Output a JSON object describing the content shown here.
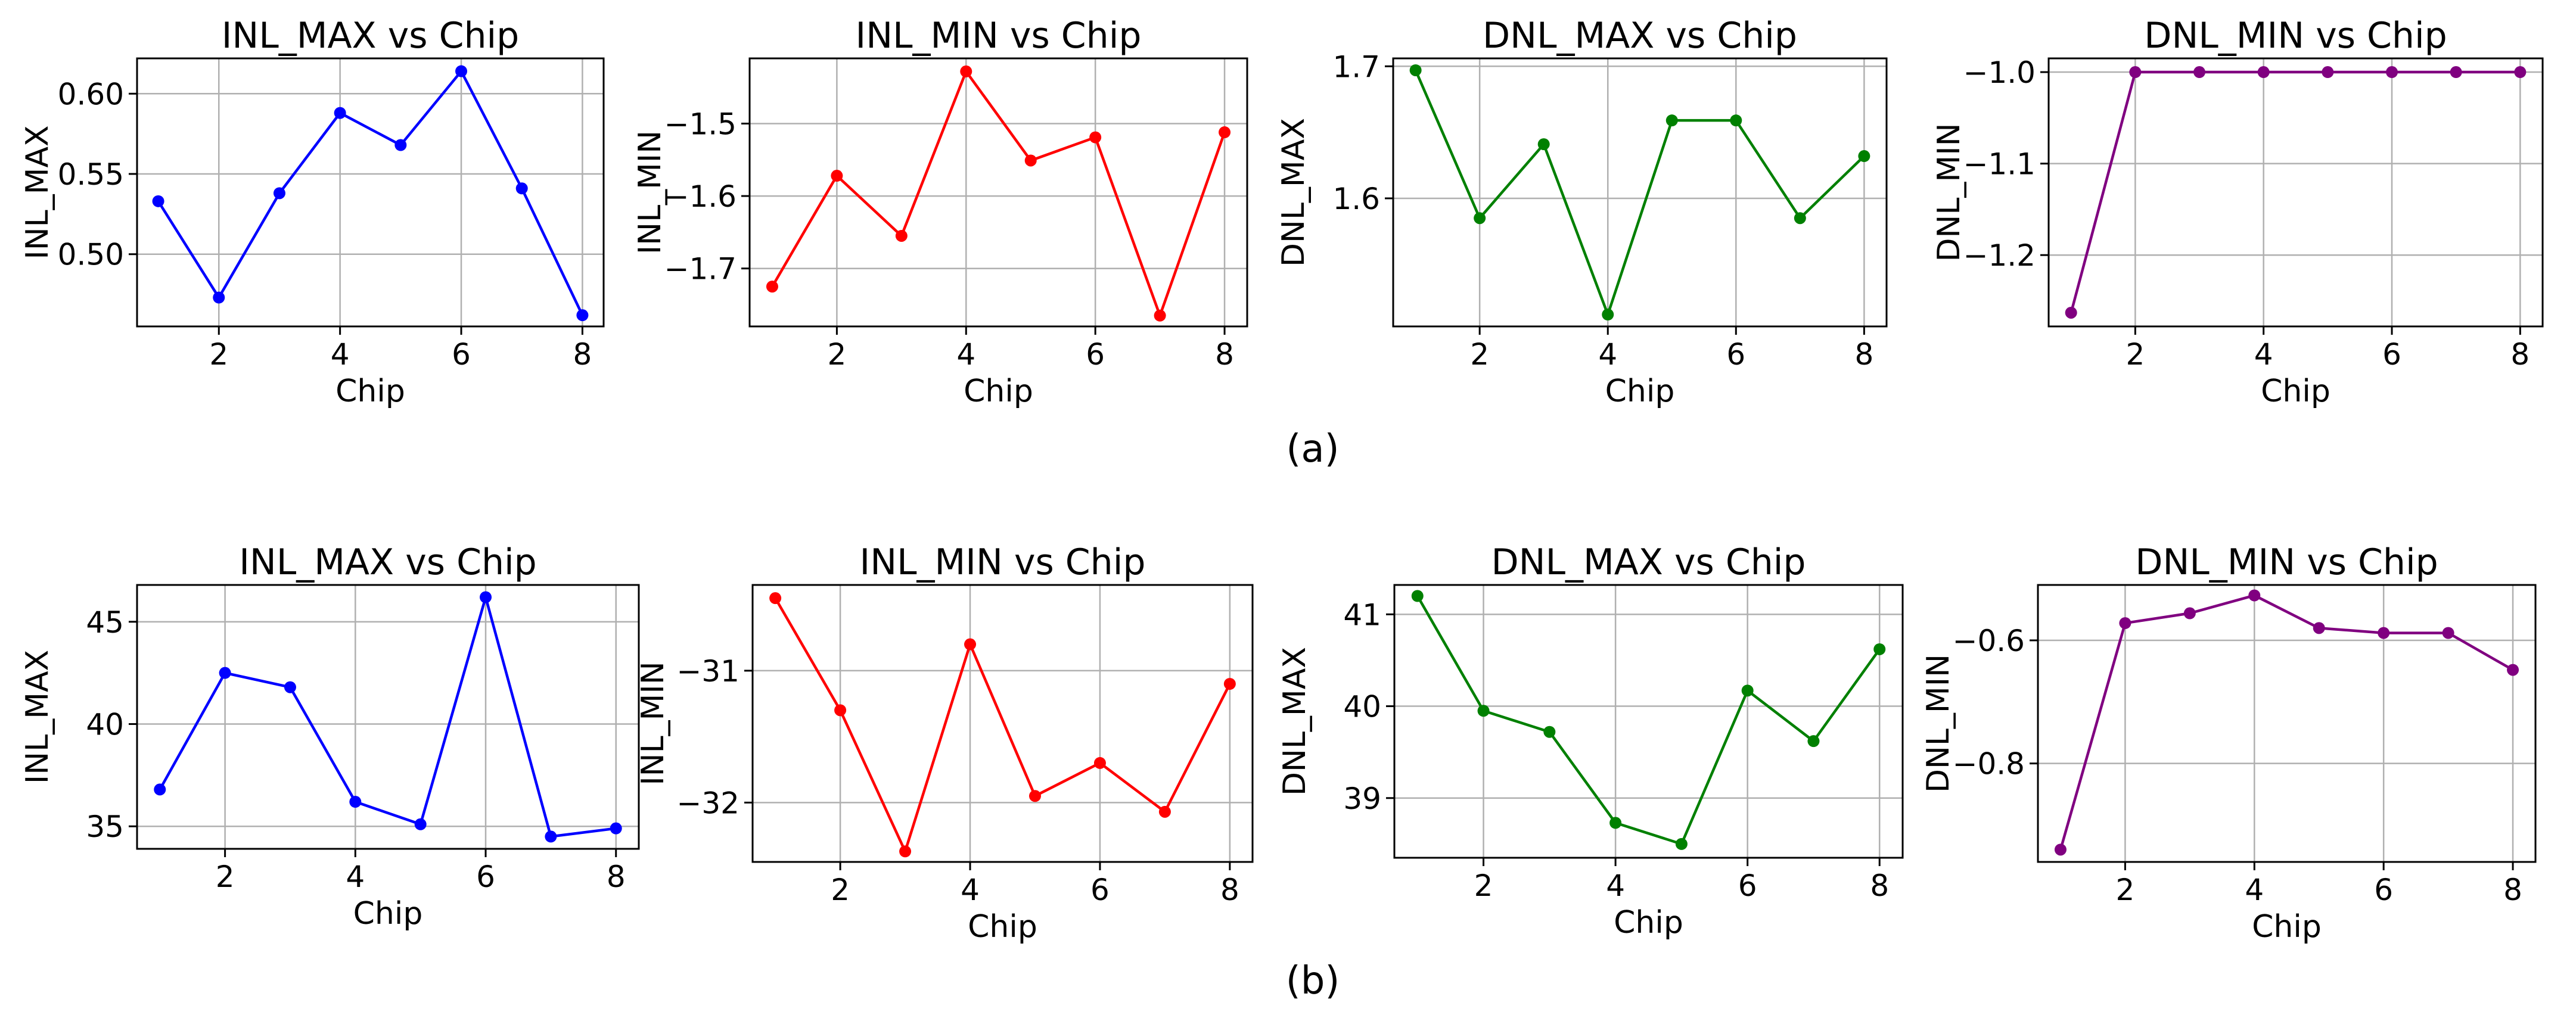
{
  "figure": {
    "caption_a": "(a)",
    "caption_b": "(b)"
  },
  "chart_data": [
    {
      "id": "a1",
      "row": "a",
      "type": "line",
      "title": "INL_MAX vs Chip",
      "xlabel": "Chip",
      "ylabel": "INL_MAX",
      "color": "#0000ff",
      "x": [
        1,
        2,
        3,
        4,
        5,
        6,
        7,
        8
      ],
      "values": [
        0.533,
        0.473,
        0.538,
        0.588,
        0.568,
        0.614,
        0.541,
        0.462
      ],
      "xlim": [
        0.65,
        8.35
      ],
      "ylim": [
        0.455,
        0.622
      ],
      "xticks": [
        2,
        4,
        6,
        8
      ],
      "yticks": [
        0.5,
        0.55,
        0.6
      ],
      "ytick_labels": [
        "0.50",
        "0.55",
        "0.60"
      ],
      "grid": true
    },
    {
      "id": "a2",
      "row": "a",
      "type": "line",
      "title": "INL_MIN vs Chip",
      "xlabel": "Chip",
      "ylabel": "INL_MIN",
      "color": "#ff0000",
      "x": [
        1,
        2,
        3,
        4,
        5,
        6,
        7,
        8
      ],
      "values": [
        -1.725,
        -1.572,
        -1.655,
        -1.428,
        -1.551,
        -1.519,
        -1.765,
        -1.512
      ],
      "xlim": [
        0.65,
        8.35
      ],
      "ylim": [
        -1.78,
        -1.41
      ],
      "xticks": [
        2,
        4,
        6,
        8
      ],
      "yticks": [
        -1.7,
        -1.6,
        -1.5
      ],
      "ytick_labels": [
        "−1.7",
        "−1.6",
        "−1.5"
      ],
      "grid": true
    },
    {
      "id": "a3",
      "row": "a",
      "type": "line",
      "title": "DNL_MAX vs Chip",
      "xlabel": "Chip",
      "ylabel": "DNL_MAX",
      "color": "#008000",
      "x": [
        1,
        2,
        3,
        4,
        5,
        6,
        7,
        8
      ],
      "values": [
        1.697,
        1.585,
        1.641,
        1.512,
        1.659,
        1.659,
        1.585,
        1.632
      ],
      "xlim": [
        0.65,
        8.35
      ],
      "ylim": [
        1.503,
        1.706
      ],
      "xticks": [
        2,
        4,
        6,
        8
      ],
      "yticks": [
        1.6,
        1.7
      ],
      "ytick_labels": [
        "1.6",
        "1.7"
      ],
      "grid": true
    },
    {
      "id": "a4",
      "row": "a",
      "type": "line",
      "title": "DNL_MIN vs Chip",
      "xlabel": "Chip",
      "ylabel": "DNL_MIN",
      "color": "#800080",
      "x": [
        1,
        2,
        3,
        4,
        5,
        6,
        7,
        8
      ],
      "values": [
        -1.263,
        -1.0,
        -1.0,
        -1.0,
        -1.0,
        -1.0,
        -1.0,
        -1.0
      ],
      "xlim": [
        0.65,
        8.35
      ],
      "ylim": [
        -1.278,
        -0.985
      ],
      "xticks": [
        2,
        4,
        6,
        8
      ],
      "yticks": [
        -1.2,
        -1.1,
        -1.0
      ],
      "ytick_labels": [
        "−1.2",
        "−1.1",
        "−1.0"
      ],
      "grid": true
    },
    {
      "id": "b1",
      "row": "b",
      "type": "line",
      "title": "INL_MAX vs Chip",
      "xlabel": "Chip",
      "ylabel": "INL_MAX",
      "color": "#0000ff",
      "x": [
        1,
        2,
        3,
        4,
        5,
        6,
        7,
        8
      ],
      "values": [
        36.8,
        42.5,
        41.8,
        36.2,
        35.1,
        46.2,
        34.5,
        34.9
      ],
      "xlim": [
        0.65,
        8.35
      ],
      "ylim": [
        33.9,
        46.8
      ],
      "xticks": [
        2,
        4,
        6,
        8
      ],
      "yticks": [
        35,
        40,
        45
      ],
      "ytick_labels": [
        "35",
        "40",
        "45"
      ],
      "grid": true
    },
    {
      "id": "b2",
      "row": "b",
      "type": "line",
      "title": "INL_MIN vs Chip",
      "xlabel": "Chip",
      "ylabel": "INL_MIN",
      "color": "#ff0000",
      "x": [
        1,
        2,
        3,
        4,
        5,
        6,
        7,
        8
      ],
      "values": [
        -30.45,
        -31.3,
        -32.37,
        -30.8,
        -31.95,
        -31.7,
        -32.07,
        -31.1
      ],
      "xlim": [
        0.65,
        8.35
      ],
      "ylim": [
        -32.45,
        -30.35
      ],
      "xticks": [
        2,
        4,
        6,
        8
      ],
      "yticks": [
        -32,
        -31
      ],
      "ytick_labels": [
        "−32",
        "−31"
      ],
      "grid": true
    },
    {
      "id": "b3",
      "row": "b",
      "type": "line",
      "title": "DNL_MAX vs Chip",
      "xlabel": "Chip",
      "ylabel": "DNL_MAX",
      "color": "#008000",
      "x": [
        1,
        2,
        3,
        4,
        5,
        6,
        7,
        8
      ],
      "values": [
        41.2,
        39.95,
        39.72,
        38.73,
        38.5,
        40.17,
        39.62,
        40.62
      ],
      "xlim": [
        0.65,
        8.35
      ],
      "ylim": [
        38.35,
        41.32
      ],
      "xticks": [
        2,
        4,
        6,
        8
      ],
      "yticks": [
        39,
        40,
        41
      ],
      "ytick_labels": [
        "39",
        "40",
        "41"
      ],
      "grid": true
    },
    {
      "id": "b4",
      "row": "b",
      "type": "line",
      "title": "DNL_MIN vs Chip",
      "xlabel": "Chip",
      "ylabel": "DNL_MIN",
      "color": "#800080",
      "x": [
        1,
        2,
        3,
        4,
        5,
        6,
        7,
        8
      ],
      "values": [
        -0.94,
        -0.572,
        -0.556,
        -0.527,
        -0.58,
        -0.588,
        -0.588,
        -0.648
      ],
      "xlim": [
        0.65,
        8.35
      ],
      "ylim": [
        -0.96,
        -0.51
      ],
      "xticks": [
        2,
        4,
        6,
        8
      ],
      "yticks": [
        -0.8,
        -0.6
      ],
      "ytick_labels": [
        "−0.8",
        "−0.6"
      ],
      "grid": true
    }
  ]
}
